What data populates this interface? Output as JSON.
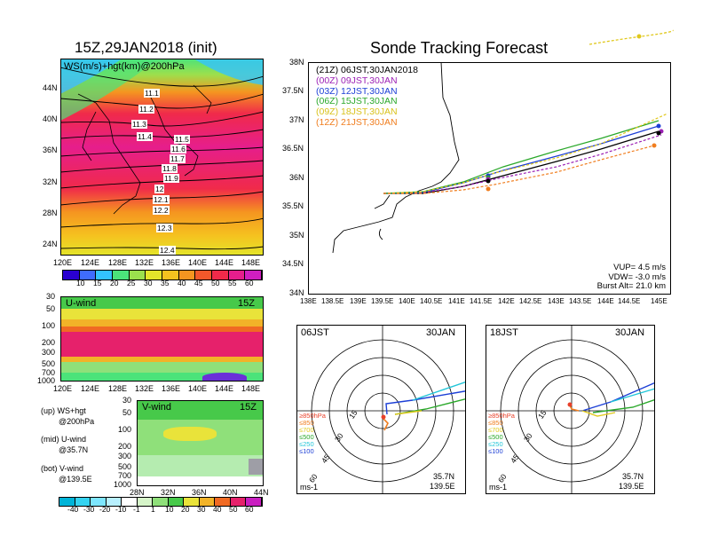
{
  "left_title": "15Z,29JAN2018 (init)",
  "right_title": "Sonde Tracking Forecast",
  "ws_panel": {
    "label": "WS(m/s)+hgt(km)@200hPa",
    "lat_ticks": [
      "44N",
      "40N",
      "36N",
      "32N",
      "28N",
      "24N"
    ],
    "lon_ticks": [
      "120E",
      "124E",
      "128E",
      "132E",
      "136E",
      "140E",
      "144E",
      "148E"
    ],
    "contour_labels": [
      "11.1",
      "11.2",
      "11.3",
      "11.4",
      "11.5",
      "11.6",
      "11.7",
      "11.8",
      "11.9",
      "12",
      "12.1",
      "12.2",
      "12.3",
      "12.4"
    ],
    "colorbar_labels": [
      "10",
      "15",
      "20",
      "25",
      "30",
      "35",
      "40",
      "45",
      "50",
      "55",
      "60"
    ],
    "colorbar_colors": [
      "#2a00d0",
      "#3f6cff",
      "#33c3ff",
      "#4be37a",
      "#9be04d",
      "#e3e52a",
      "#f5c21f",
      "#f59520",
      "#f2582a",
      "#f02a4a",
      "#e61e8c",
      "#d01ec0"
    ]
  },
  "u_panel": {
    "label": "U-wind",
    "time": "15Z",
    "p_ticks": [
      "30",
      "50",
      "100",
      "200",
      "300",
      "500",
      "700",
      "1000"
    ],
    "lon_ticks": [
      "120E",
      "124E",
      "128E",
      "132E",
      "136E",
      "140E",
      "144E",
      "148E"
    ]
  },
  "v_panel": {
    "label": "V-wind",
    "time": "15Z",
    "p_ticks": [
      "30",
      "50",
      "100",
      "200",
      "300",
      "500",
      "700",
      "1000"
    ],
    "lat_ticks": [
      "28N",
      "32N",
      "36N",
      "40N",
      "44N"
    ],
    "colorbar_labels": [
      "-40",
      "-30",
      "-20",
      "-10",
      "-1",
      "1",
      "10",
      "20",
      "30",
      "40",
      "50",
      "60"
    ],
    "colorbar_colors": [
      "#00b4d8",
      "#34d3f0",
      "#7de6ff",
      "#b8f0ff",
      "#ffffff",
      "#d6f5c9",
      "#8fe07a",
      "#47c94a",
      "#e9e33a",
      "#f2b328",
      "#f06a23",
      "#e6216b",
      "#c91ec0"
    ]
  },
  "legend_notes": {
    "up_1": "(up) WS+hgt",
    "up_2": "@200hPa",
    "mid_1": "(mid) U-wind",
    "mid_2": "@35.7N",
    "bot_1": "(bot) V-wind",
    "bot_2": "@139.5E"
  },
  "track_panel": {
    "lat_ticks": [
      "38N",
      "37.5N",
      "37N",
      "36.5N",
      "36N",
      "35.5N",
      "35N",
      "34.5N",
      "34N"
    ],
    "lon_ticks": [
      "138E",
      "138.5E",
      "139E",
      "139.5E",
      "140E",
      "140.5E",
      "141E",
      "141.5E",
      "142E",
      "142.5E",
      "143E",
      "143.5E",
      "144E",
      "144.5E",
      "145E"
    ],
    "legend": [
      {
        "text": "(21Z)  06JST,30JAN2018",
        "color": "#000000"
      },
      {
        "text": "(00Z)  09JST,30JAN",
        "color": "#9b1fb5"
      },
      {
        "text": "(03Z)  12JST,30JAN",
        "color": "#1c3fd6"
      },
      {
        "text": "(06Z)  15JST,30JAN",
        "color": "#2aa82a"
      },
      {
        "text": "(09Z)  18JST,30JAN",
        "color": "#d9c21c"
      },
      {
        "text": "(12Z)  21JST,30JAN",
        "color": "#f07d1e"
      }
    ],
    "params": {
      "vup": "VUP= 4.5 m/s",
      "vdw": "VDW= -3.0 m/s",
      "burst": "Burst Alt= 21.0 km"
    }
  },
  "hodo_left": {
    "time": "06JST",
    "date": "30JAN",
    "lat": "35.7N",
    "lon": "139.5E",
    "unit": "ms-1",
    "ring_labels": [
      "15",
      "30",
      "45",
      "60"
    ],
    "levels": [
      {
        "text": "≥850hPa",
        "color": "#e8402a"
      },
      {
        "text": "≤850",
        "color": "#f07d1e"
      },
      {
        "text": "≤700",
        "color": "#e0c81c"
      },
      {
        "text": "≤500",
        "color": "#2aa82a"
      },
      {
        "text": "≤250",
        "color": "#22c6d8"
      },
      {
        "text": "≤100",
        "color": "#1c3fd6"
      }
    ]
  },
  "hodo_right": {
    "time": "18JST",
    "date": "30JAN",
    "lat": "35.7N",
    "lon": "139.5E",
    "unit": "ms-1",
    "ring_labels": [
      "15",
      "30",
      "45",
      "60"
    ],
    "levels": [
      {
        "text": "≥850hPa",
        "color": "#e8402a"
      },
      {
        "text": "≤850",
        "color": "#f07d1e"
      },
      {
        "text": "≤700",
        "color": "#e0c81c"
      },
      {
        "text": "≤500",
        "color": "#2aa82a"
      },
      {
        "text": "≤250",
        "color": "#22c6d8"
      },
      {
        "text": "≤100",
        "color": "#1c3fd6"
      }
    ]
  }
}
